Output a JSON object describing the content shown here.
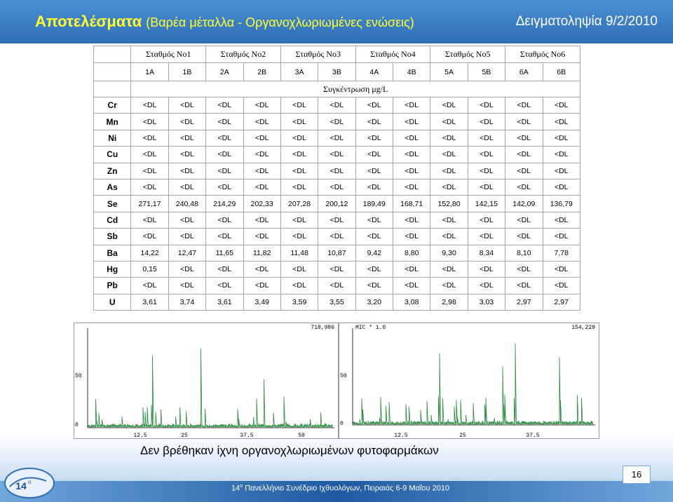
{
  "header": {
    "title": "Αποτελέσματα",
    "subtitle": "(Βαρέα μέταλλα - Οργανοχλωριωμένες ενώσεις)",
    "date": "Δειγματοληψία 9/2/2010"
  },
  "table": {
    "stations": [
      "Σταθμός Νο1",
      "Σταθμός Νο2",
      "Σταθμός Νο3",
      "Σταθμός Νο4",
      "Σταθμός Νο5",
      "Σταθμός Νο6"
    ],
    "samples": [
      "1A",
      "1B",
      "2A",
      "2B",
      "3A",
      "3B",
      "4A",
      "4B",
      "5A",
      "5B",
      "6A",
      "6B"
    ],
    "unit": "Συγκέντρωση μg/L",
    "rows": [
      {
        "element": "Cr",
        "cells": [
          "<DL",
          "<DL",
          "<DL",
          "<DL",
          "<DL",
          "<DL",
          "<DL",
          "<DL",
          "<DL",
          "<DL",
          "<DL",
          "<DL"
        ]
      },
      {
        "element": "Mn",
        "cells": [
          "<DL",
          "<DL",
          "<DL",
          "<DL",
          "<DL",
          "<DL",
          "<DL",
          "<DL",
          "<DL",
          "<DL",
          "<DL",
          "<DL"
        ]
      },
      {
        "element": "Ni",
        "cells": [
          "<DL",
          "<DL",
          "<DL",
          "<DL",
          "<DL",
          "<DL",
          "<DL",
          "<DL",
          "<DL",
          "<DL",
          "<DL",
          "<DL"
        ]
      },
      {
        "element": "Cu",
        "cells": [
          "<DL",
          "<DL",
          "<DL",
          "<DL",
          "<DL",
          "<DL",
          "<DL",
          "<DL",
          "<DL",
          "<DL",
          "<DL",
          "<DL"
        ]
      },
      {
        "element": "Zn",
        "cells": [
          "<DL",
          "<DL",
          "<DL",
          "<DL",
          "<DL",
          "<DL",
          "<DL",
          "<DL",
          "<DL",
          "<DL",
          "<DL",
          "<DL"
        ]
      },
      {
        "element": "As",
        "cells": [
          "<DL",
          "<DL",
          "<DL",
          "<DL",
          "<DL",
          "<DL",
          "<DL",
          "<DL",
          "<DL",
          "<DL",
          "<DL",
          "<DL"
        ]
      },
      {
        "element": "Se",
        "cells": [
          "271,17",
          "240,48",
          "214,29",
          "202,33",
          "207,28",
          "200,12",
          "189,49",
          "168,71",
          "152,80",
          "142,15",
          "142,09",
          "136,79"
        ]
      },
      {
        "element": "Cd",
        "cells": [
          "<DL",
          "<DL",
          "<DL",
          "<DL",
          "<DL",
          "<DL",
          "<DL",
          "<DL",
          "<DL",
          "<DL",
          "<DL",
          "<DL"
        ]
      },
      {
        "element": "Sb",
        "cells": [
          "<DL",
          "<DL",
          "<DL",
          "<DL",
          "<DL",
          "<DL",
          "<DL",
          "<DL",
          "<DL",
          "<DL",
          "<DL",
          "<DL"
        ]
      },
      {
        "element": "Ba",
        "cells": [
          "14,22",
          "12,47",
          "11,65",
          "11,82",
          "11,48",
          "10,87",
          "9,42",
          "8,80",
          "9,30",
          "8,34",
          "8,10",
          "7,78"
        ]
      },
      {
        "element": "Hg",
        "cells": [
          "0,15",
          "<DL",
          "<DL",
          "<DL",
          "<DL",
          "<DL",
          "<DL",
          "<DL",
          "<DL",
          "<DL",
          "<DL",
          "<DL"
        ]
      },
      {
        "element": "Pb",
        "cells": [
          "<DL",
          "<DL",
          "<DL",
          "<DL",
          "<DL",
          "<DL",
          "<DL",
          "<DL",
          "<DL",
          "<DL",
          "<DL",
          "<DL"
        ]
      },
      {
        "element": "U",
        "cells": [
          "3,61",
          "3,74",
          "3,61",
          "3,49",
          "3,59",
          "3,55",
          "3,20",
          "3,08",
          "2,98",
          "3,03",
          "2,97",
          "2,97"
        ]
      }
    ]
  },
  "chromatograms": [
    {
      "max_label": "718,986",
      "y_labels": [
        "50",
        "0"
      ],
      "x_labels": [
        "12.5",
        "25",
        "37.5",
        "50"
      ]
    },
    {
      "title": "MIC * 1.0",
      "max_label": "154,229",
      "y_labels": [
        "50",
        "0"
      ],
      "x_labels": [
        "12.5",
        "25",
        "37.5"
      ]
    }
  ],
  "caption": "Δεν βρέθηκαν ίχνη οργανοχλωριωμένων φυτοφαρμάκων",
  "footer": {
    "edition": "14",
    "edition_suffix": "ο",
    "text": "Πανελλήνιο Συνέδριο Ιχθυολόγων, Πειραιάς 6-9 Μαΐου 2010",
    "page": "16"
  },
  "logo": {
    "edition": "14",
    "edition_suffix": "ο"
  }
}
